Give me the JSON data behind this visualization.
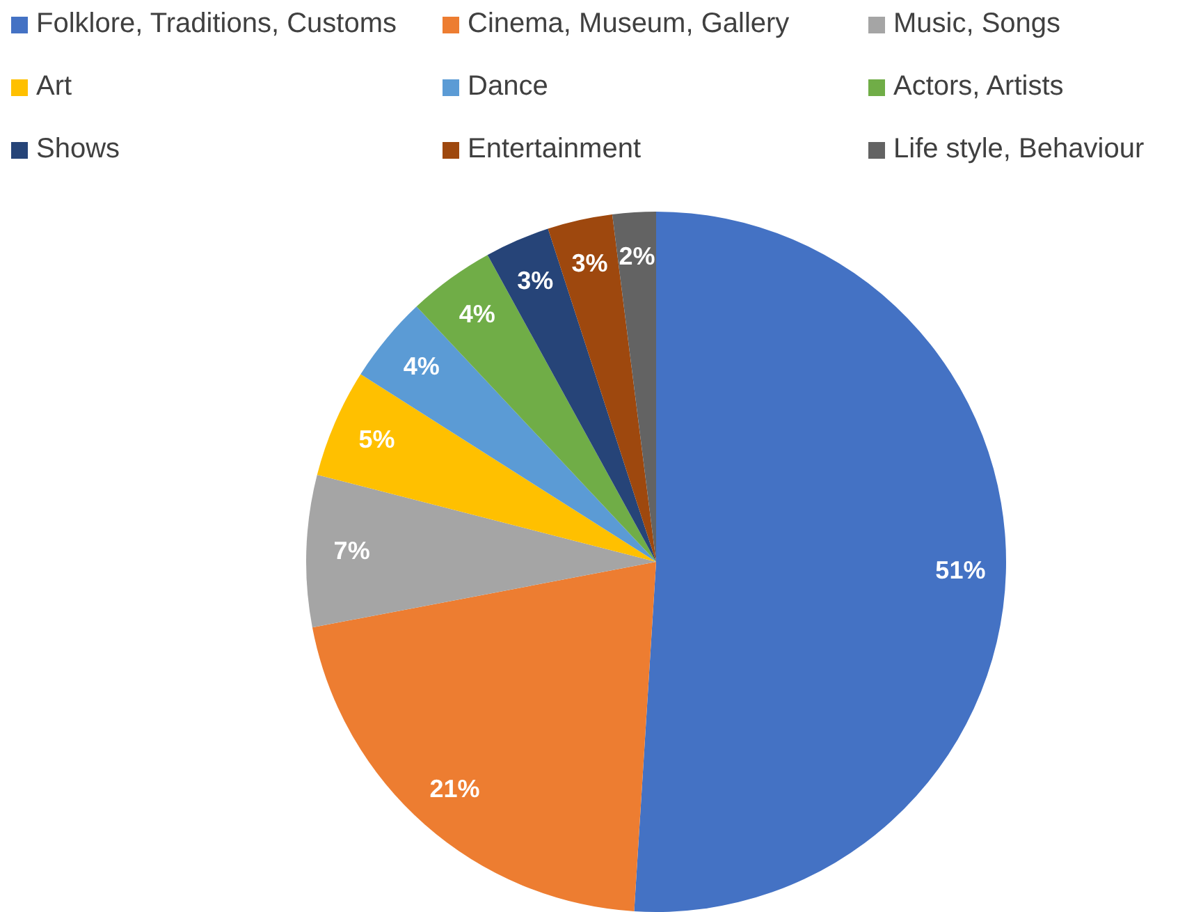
{
  "chart_data": {
    "type": "pie",
    "legend": "top",
    "categories": [
      "Folklore, Traditions, Customs",
      "Cinema, Museum, Gallery",
      "Music, Songs",
      "Art",
      "Dance",
      "Actors, Artists",
      "Shows",
      "Entertainment",
      "Life style, Behaviour"
    ],
    "values": [
      51,
      21,
      7,
      5,
      4,
      4,
      3,
      3,
      2
    ],
    "colors": [
      "#4472c4",
      "#ed7d31",
      "#a5a5a5",
      "#ffc000",
      "#5b9bd5",
      "#70ad47",
      "#264478",
      "#9e480e",
      "#636363"
    ],
    "value_labels": [
      "51%",
      "21%",
      "7%",
      "5%",
      "4%",
      "4%",
      "3%",
      "3%",
      "2%"
    ]
  }
}
